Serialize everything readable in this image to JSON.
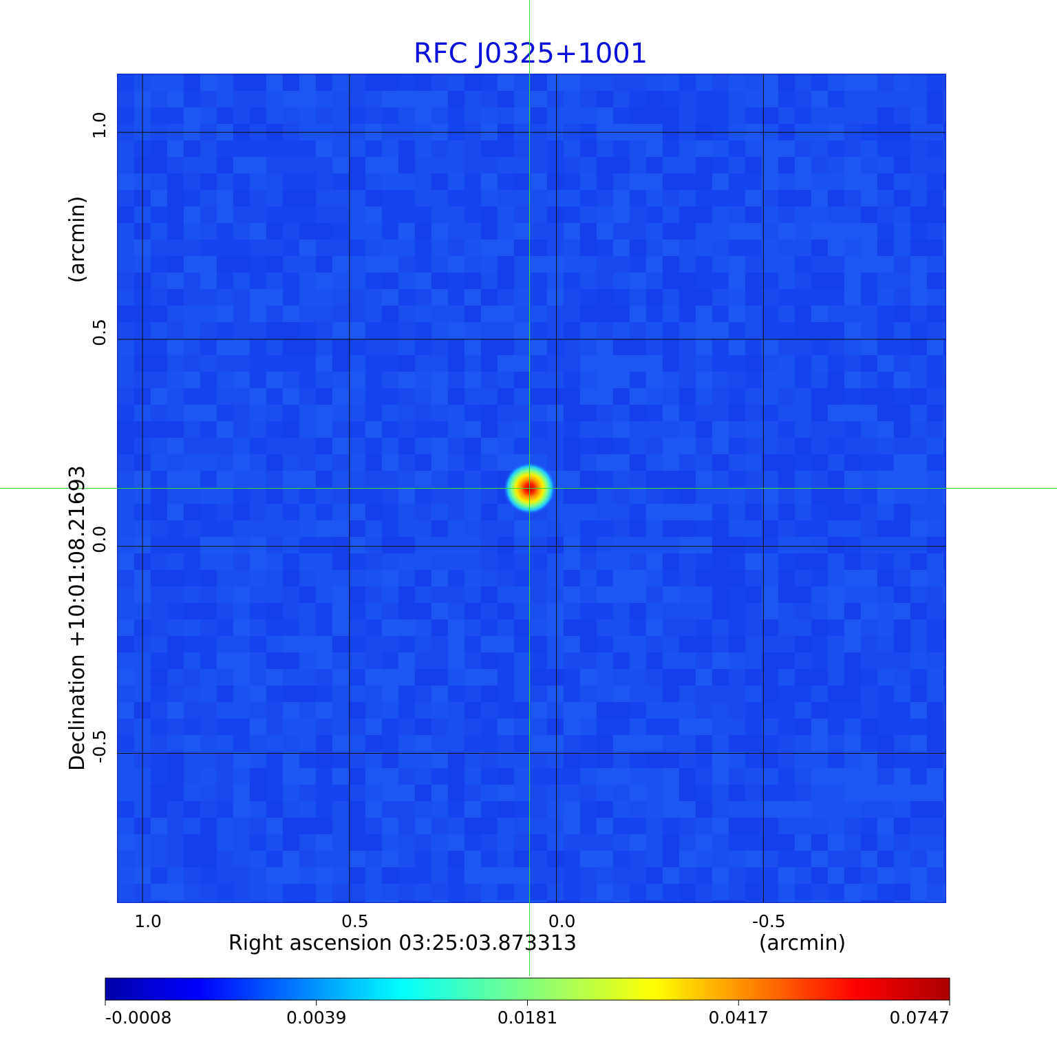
{
  "chart_data": {
    "type": "heatmap",
    "title": "RFC J0325+1001",
    "xlabel": "Right ascension  03:25:03.873313",
    "xlabel_unit": "(arcmin)",
    "ylabel": "Declination  +10:01:08.21693",
    "ylabel_unit": "(arcmin)",
    "x_ticks": [
      "1.0",
      "0.5",
      "0.0",
      "-0.5"
    ],
    "y_ticks": [
      "1.0",
      "0.5",
      "0.0",
      "-0.5"
    ],
    "x_tick_values": [
      1.0,
      0.5,
      0.0,
      -0.5
    ],
    "y_tick_values": [
      1.0,
      0.5,
      0.0,
      -0.5
    ],
    "xlim": [
      1.06,
      -0.94
    ],
    "ylim": [
      -0.86,
      1.14
    ],
    "grid": true,
    "crosshair": {
      "x": 0.065,
      "y": 0.14,
      "color": "#33dd33"
    },
    "source": {
      "x": 0.065,
      "y": 0.14,
      "peak": 0.0747
    },
    "colorbar": {
      "ticks": [
        "-0.0008",
        "0.0039",
        "0.0181",
        "0.0417",
        "0.0747"
      ],
      "colormap": "jet",
      "colors": [
        "#0000aa",
        "#0000ff",
        "#0080ff",
        "#00ffff",
        "#80ff80",
        "#ffff00",
        "#ff8000",
        "#ff0000",
        "#aa0000"
      ]
    }
  }
}
